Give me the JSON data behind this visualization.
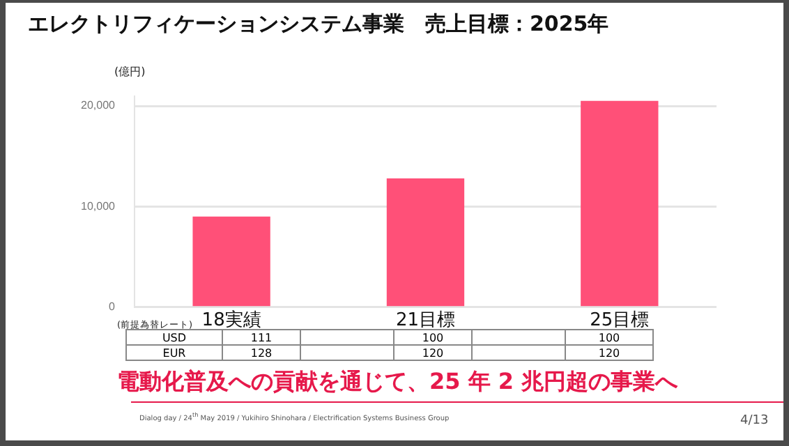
{
  "chart_data": {
    "type": "bar",
    "title": "エレクトリフィケーションシステム事業　売上目標：2025年",
    "ylabel": "(億円)",
    "categories": [
      "18実績",
      "21目標",
      "25目標"
    ],
    "values": [
      9000,
      12800,
      20500
    ],
    "color": "#ff5078",
    "ylim": [
      0,
      21000
    ],
    "yticks": [
      0,
      {
        "value": 10000,
        "label": "10,000"
      },
      {
        "value": 20000,
        "label": "20,000"
      }
    ],
    "grid": "y",
    "legend": false,
    "annotations": [
      "(前提為替レート)",
      "USD",
      "111",
      "100",
      "100",
      "EUR",
      "128",
      "120",
      "120",
      "電動化普及への貢献を通じて、25 年 2 兆円超の事業へ",
      "Dialog day / 24$^{th}$ May 2019 / Yukihiro Shinohara / Electrification Systems Business Group",
      "4/13"
    ]
  }
}
